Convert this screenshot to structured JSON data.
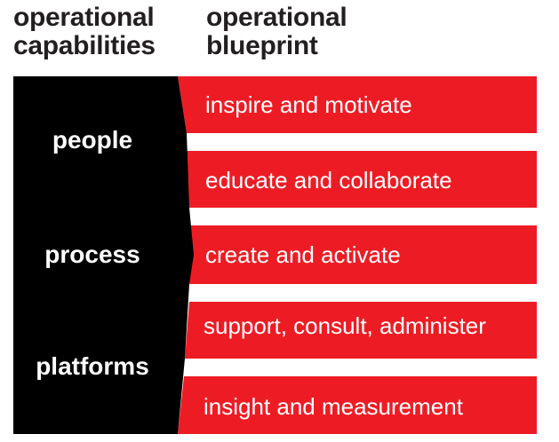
{
  "headings": {
    "left": "operational\ncapabilities",
    "right": "operational\nblueprint"
  },
  "capabilities": [
    "people",
    "process",
    "platforms"
  ],
  "blueprint": [
    "inspire and motivate",
    "educate and collaborate",
    "create and activate",
    "support, consult, administer",
    "insight and measurement"
  ],
  "colors": {
    "panel": "#000000",
    "bar": "#ed1c24",
    "heading_text": "#231f20",
    "label_text": "#ffffff"
  }
}
